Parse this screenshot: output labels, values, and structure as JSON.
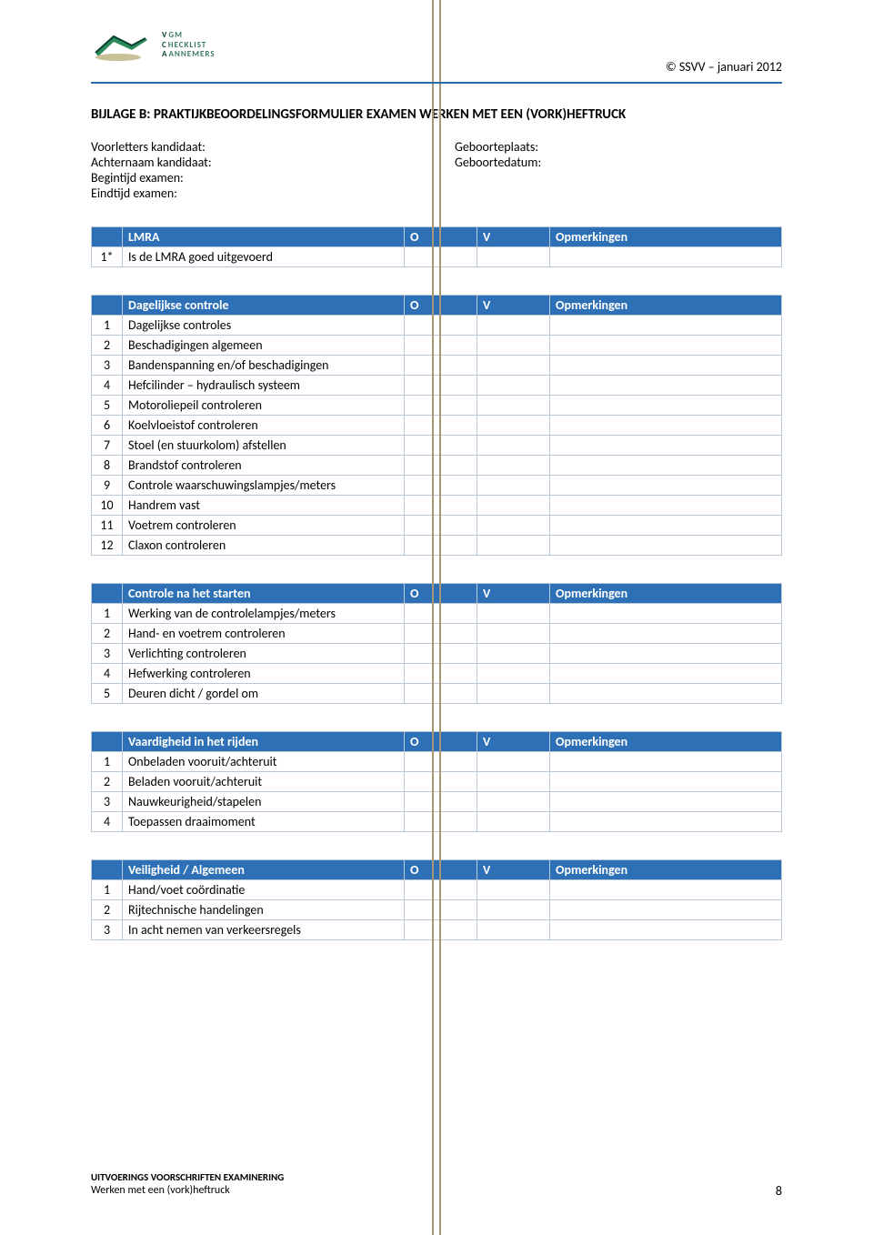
{
  "header": {
    "logo_lines": [
      {
        "first": "V",
        "rest": "GM"
      },
      {
        "first": "C",
        "rest": "HECKLIST"
      },
      {
        "first": "A",
        "rest": "ANNEMERS"
      }
    ],
    "copyright": "© SSVV – januari 2012"
  },
  "title": "BIJLAGE B:    PRAKTIJKBEOORDELINGSFORMULIER EXAMEN WERKEN MET EEN (VORK)HEFTRUCK",
  "meta": {
    "left": [
      "Voorletters kandidaat:",
      "Achternaam kandidaat:",
      "Begintijd examen:",
      "Eindtijd examen:"
    ],
    "right": [
      "Geboorteplaats:",
      "Geboortedatum:"
    ]
  },
  "columns": {
    "o": "O",
    "v": "V",
    "op": "Opmerkingen"
  },
  "tables": [
    {
      "title": "LMRA",
      "rows": [
        {
          "n": "1*",
          "desc": "Is de LMRA goed uitgevoerd"
        }
      ]
    },
    {
      "title": "Dagelijkse controle",
      "rows": [
        {
          "n": "1",
          "desc": "Dagelijkse controles"
        },
        {
          "n": "2",
          "desc": "Beschadigingen algemeen"
        },
        {
          "n": "3",
          "desc": "Bandenspanning en/of beschadigingen"
        },
        {
          "n": "4",
          "desc": "Hefcilinder – hydraulisch systeem"
        },
        {
          "n": "5",
          "desc": "Motoroliepeil controleren"
        },
        {
          "n": "6",
          "desc": "Koelvloeistof controleren"
        },
        {
          "n": "7",
          "desc": "Stoel (en stuurkolom) afstellen"
        },
        {
          "n": "8",
          "desc": "Brandstof controleren"
        },
        {
          "n": "9",
          "desc": "Controle waarschuwingslampjes/meters"
        },
        {
          "n": "10",
          "desc": "Handrem vast"
        },
        {
          "n": "11",
          "desc": "Voetrem controleren"
        },
        {
          "n": "12",
          "desc": "Claxon controleren"
        }
      ]
    },
    {
      "title": "Controle na het starten",
      "rows": [
        {
          "n": "1",
          "desc": "Werking van de controlelampjes/meters"
        },
        {
          "n": "2",
          "desc": "Hand- en voetrem controleren"
        },
        {
          "n": "3",
          "desc": "Verlichting controleren"
        },
        {
          "n": "4",
          "desc": "Hefwerking controleren"
        },
        {
          "n": "5",
          "desc": "Deuren dicht / gordel om"
        }
      ]
    },
    {
      "title": "Vaardigheid in het rijden",
      "rows": [
        {
          "n": "1",
          "desc": "Onbeladen vooruit/achteruit"
        },
        {
          "n": "2",
          "desc": "Beladen vooruit/achteruit"
        },
        {
          "n": "3",
          "desc": "Nauwkeurigheid/stapelen"
        },
        {
          "n": "4",
          "desc": "Toepassen draaimoment"
        }
      ]
    },
    {
      "title": "Veiligheid  / Algemeen",
      "rows": [
        {
          "n": "1",
          "desc": "Hand/voet coördinatie"
        },
        {
          "n": "2",
          "desc": "Rijtechnische handelingen"
        },
        {
          "n": "3",
          "desc": "In acht nemen van verkeersregels"
        }
      ]
    }
  ],
  "footer": {
    "line1": "UITVOERINGS VOORSCHRIFTEN EXAMINERING",
    "line2": "Werken met een (vork)heftruck",
    "page": "8"
  },
  "colors": {
    "header_bg": "#2e70b5",
    "header_text": "#ffffff",
    "border": "#b8c8d6",
    "hr": "#2b6aa8",
    "logo_dark": "#0a3f2f",
    "logo_light": "#3b7a5f"
  }
}
